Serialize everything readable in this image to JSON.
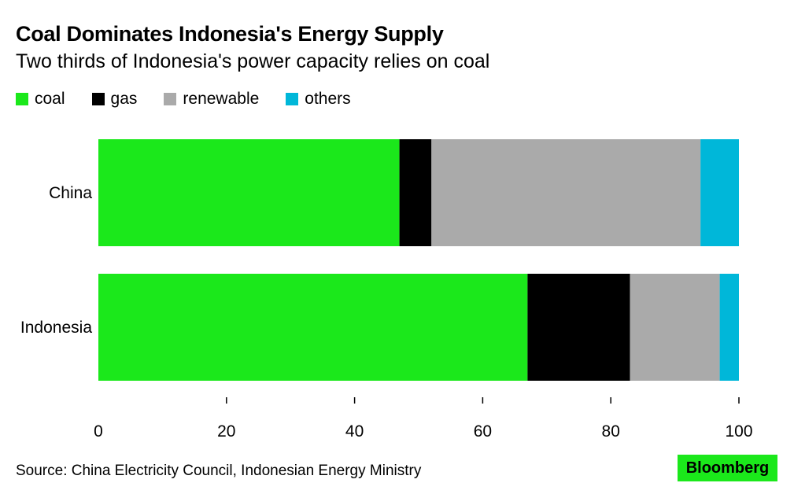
{
  "header": {
    "title": "Coal Dominates Indonesia's Energy Supply",
    "subtitle": "Two thirds of Indonesia's power capacity relies on coal"
  },
  "footer": {
    "source": "Source: China Electricity Council, Indonesian Energy Ministry",
    "brand": "Bloomberg",
    "brand_color": "#1be81b"
  },
  "chart_data": {
    "type": "bar",
    "orientation": "horizontal",
    "stacked": true,
    "categories": [
      "China",
      "Indonesia"
    ],
    "series": [
      {
        "name": "coal",
        "color": "#1be81b",
        "values": [
          47,
          67
        ]
      },
      {
        "name": "gas",
        "color": "#000000",
        "values": [
          5,
          16
        ]
      },
      {
        "name": "renewable",
        "color": "#aaaaaa",
        "values": [
          42,
          14
        ]
      },
      {
        "name": "others",
        "color": "#00b7d9",
        "values": [
          6,
          3
        ]
      }
    ],
    "xlim": [
      0,
      100
    ],
    "xticks": [
      "0",
      "20",
      "40",
      "60",
      "80",
      "100"
    ],
    "legend": "top-left",
    "grid": false
  }
}
